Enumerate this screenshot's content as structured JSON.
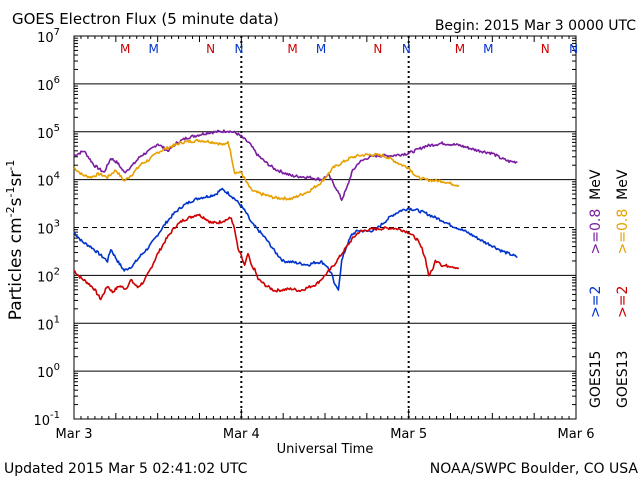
{
  "header": {
    "title": "GOES Electron Flux (5 minute data)",
    "begin": "Begin: 2015 Mar 3 0000 UTC"
  },
  "footer": {
    "updated": "Updated 2015 Mar  5 02:41:02 UTC",
    "credit": "NOAA/SWPC Boulder, CO USA"
  },
  "chart_data": {
    "type": "line",
    "title": "GOES Electron Flux (5 minute data)",
    "xlabel": "Universal Time",
    "ylabel_parts": [
      "Particles cm",
      "-2",
      "s",
      "-1",
      "sr",
      "-1"
    ],
    "x_unit": "days since 2015 Mar 3 0000 UTC",
    "xlim": [
      0,
      3
    ],
    "ylim_log10": [
      -1,
      7
    ],
    "y_ticks": [
      {
        "base": "10",
        "exp": "7"
      },
      {
        "base": "10",
        "exp": "6"
      },
      {
        "base": "10",
        "exp": "5"
      },
      {
        "base": "10",
        "exp": "4"
      },
      {
        "base": "10",
        "exp": "3"
      },
      {
        "base": "10",
        "exp": "2"
      },
      {
        "base": "10",
        "exp": "1"
      },
      {
        "base": "10",
        "exp": "0"
      },
      {
        "base": "10",
        "exp": "-1"
      }
    ],
    "x_ticks": [
      {
        "label": "Mar 3",
        "x": 0
      },
      {
        "label": "Mar 4",
        "x": 1
      },
      {
        "label": "Mar 5",
        "x": 2
      },
      {
        "label": "Mar 6",
        "x": 3
      }
    ],
    "mn_markers": [
      {
        "label": "M",
        "x": 0.33,
        "color": "#cc0000"
      },
      {
        "label": "M",
        "x": 0.5,
        "color": "#0033cc"
      },
      {
        "label": "N",
        "x": 0.84,
        "color": "#cc0000"
      },
      {
        "label": "N",
        "x": 1.01,
        "color": "#0033cc"
      },
      {
        "label": "M",
        "x": 1.33,
        "color": "#cc0000"
      },
      {
        "label": "M",
        "x": 1.5,
        "color": "#0033cc"
      },
      {
        "label": "N",
        "x": 1.84,
        "color": "#cc0000"
      },
      {
        "label": "N",
        "x": 2.01,
        "color": "#0033cc"
      },
      {
        "label": "M",
        "x": 2.33,
        "color": "#cc0000"
      },
      {
        "label": "M",
        "x": 2.5,
        "color": "#0033cc"
      },
      {
        "label": "N",
        "x": 2.84,
        "color": "#cc0000"
      },
      {
        "label": "N",
        "x": 3.01,
        "color": "#0033cc"
      }
    ],
    "legend": {
      "placement": "right",
      "groups": [
        {
          "label": "GOES15",
          "entries": [
            {
              "text": ">=2",
              "color": "#0033cc"
            },
            {
              "text": ">=0.8",
              "color": "#7a1ea0"
            }
          ]
        },
        {
          "label": "GOES13",
          "entries": [
            {
              "text": ">=2",
              "color": "#cc0000"
            },
            {
              "text": ">=0.8",
              "color": "#e6a000"
            }
          ]
        }
      ],
      "unit": "MeV"
    },
    "series": [
      {
        "name": "GOES15 >=0.8 MeV",
        "color": "#7a1ea0",
        "points": [
          [
            0.0,
            4.5
          ],
          [
            0.06,
            4.6
          ],
          [
            0.12,
            4.3
          ],
          [
            0.18,
            4.15
          ],
          [
            0.22,
            4.45
          ],
          [
            0.26,
            4.35
          ],
          [
            0.3,
            4.15
          ],
          [
            0.35,
            4.3
          ],
          [
            0.4,
            4.5
          ],
          [
            0.45,
            4.6
          ],
          [
            0.5,
            4.75
          ],
          [
            0.56,
            4.6
          ],
          [
            0.62,
            4.78
          ],
          [
            0.68,
            4.88
          ],
          [
            0.74,
            4.93
          ],
          [
            0.8,
            4.98
          ],
          [
            0.86,
            5.0
          ],
          [
            0.92,
            5.02
          ],
          [
            0.97,
            4.97
          ],
          [
            1.0,
            4.9
          ],
          [
            1.05,
            4.75
          ],
          [
            1.1,
            4.5
          ],
          [
            1.15,
            4.35
          ],
          [
            1.2,
            4.22
          ],
          [
            1.3,
            4.08
          ],
          [
            1.4,
            4.05
          ],
          [
            1.48,
            4.0
          ],
          [
            1.52,
            4.1
          ],
          [
            1.57,
            3.8
          ],
          [
            1.6,
            3.58
          ],
          [
            1.63,
            3.82
          ],
          [
            1.66,
            4.15
          ],
          [
            1.7,
            4.35
          ],
          [
            1.75,
            4.45
          ],
          [
            1.8,
            4.5
          ],
          [
            1.9,
            4.5
          ],
          [
            2.0,
            4.55
          ],
          [
            2.05,
            4.62
          ],
          [
            2.1,
            4.7
          ],
          [
            2.2,
            4.76
          ],
          [
            2.3,
            4.72
          ],
          [
            2.4,
            4.62
          ],
          [
            2.5,
            4.55
          ],
          [
            2.55,
            4.45
          ],
          [
            2.6,
            4.38
          ],
          [
            2.65,
            4.37
          ]
        ]
      },
      {
        "name": "GOES13 >=0.8 MeV",
        "color": "#e6a000",
        "points": [
          [
            0.0,
            4.25
          ],
          [
            0.05,
            4.1
          ],
          [
            0.1,
            4.05
          ],
          [
            0.15,
            4.12
          ],
          [
            0.2,
            4.05
          ],
          [
            0.25,
            4.2
          ],
          [
            0.3,
            3.97
          ],
          [
            0.35,
            4.12
          ],
          [
            0.4,
            4.32
          ],
          [
            0.45,
            4.42
          ],
          [
            0.5,
            4.57
          ],
          [
            0.55,
            4.65
          ],
          [
            0.6,
            4.72
          ],
          [
            0.65,
            4.78
          ],
          [
            0.7,
            4.8
          ],
          [
            0.75,
            4.82
          ],
          [
            0.8,
            4.8
          ],
          [
            0.85,
            4.77
          ],
          [
            0.9,
            4.72
          ],
          [
            0.92,
            4.8
          ],
          [
            0.94,
            4.5
          ],
          [
            0.96,
            4.15
          ],
          [
            1.0,
            4.15
          ],
          [
            1.03,
            3.95
          ],
          [
            1.06,
            3.78
          ],
          [
            1.1,
            3.72
          ],
          [
            1.2,
            3.62
          ],
          [
            1.3,
            3.6
          ],
          [
            1.4,
            3.75
          ],
          [
            1.48,
            3.95
          ],
          [
            1.55,
            4.25
          ],
          [
            1.6,
            4.35
          ],
          [
            1.65,
            4.45
          ],
          [
            1.7,
            4.5
          ],
          [
            1.75,
            4.52
          ],
          [
            1.8,
            4.52
          ],
          [
            1.85,
            4.5
          ],
          [
            1.9,
            4.42
          ],
          [
            1.95,
            4.32
          ],
          [
            2.0,
            4.25
          ],
          [
            2.05,
            4.05
          ],
          [
            2.1,
            4.0
          ],
          [
            2.15,
            3.98
          ],
          [
            2.2,
            3.97
          ],
          [
            2.25,
            3.92
          ],
          [
            2.3,
            3.88
          ]
        ]
      },
      {
        "name": "GOES15 >=2 MeV",
        "color": "#0033cc",
        "points": [
          [
            0.0,
            2.9
          ],
          [
            0.05,
            2.7
          ],
          [
            0.1,
            2.6
          ],
          [
            0.15,
            2.45
          ],
          [
            0.2,
            2.3
          ],
          [
            0.22,
            2.55
          ],
          [
            0.26,
            2.3
          ],
          [
            0.3,
            2.1
          ],
          [
            0.35,
            2.2
          ],
          [
            0.4,
            2.42
          ],
          [
            0.45,
            2.6
          ],
          [
            0.5,
            2.85
          ],
          [
            0.55,
            3.1
          ],
          [
            0.6,
            3.3
          ],
          [
            0.65,
            3.45
          ],
          [
            0.7,
            3.55
          ],
          [
            0.75,
            3.62
          ],
          [
            0.8,
            3.65
          ],
          [
            0.85,
            3.7
          ],
          [
            0.88,
            3.8
          ],
          [
            0.92,
            3.72
          ],
          [
            0.96,
            3.6
          ],
          [
            1.0,
            3.45
          ],
          [
            1.03,
            3.3
          ],
          [
            1.06,
            3.1
          ],
          [
            1.1,
            2.95
          ],
          [
            1.15,
            2.75
          ],
          [
            1.2,
            2.5
          ],
          [
            1.25,
            2.3
          ],
          [
            1.3,
            2.28
          ],
          [
            1.35,
            2.25
          ],
          [
            1.4,
            2.22
          ],
          [
            1.44,
            2.27
          ],
          [
            1.48,
            2.28
          ],
          [
            1.51,
            2.2
          ],
          [
            1.54,
            2.02
          ],
          [
            1.56,
            1.78
          ],
          [
            1.58,
            1.72
          ],
          [
            1.6,
            2.3
          ],
          [
            1.63,
            2.62
          ],
          [
            1.66,
            2.85
          ],
          [
            1.7,
            2.94
          ],
          [
            1.75,
            2.92
          ],
          [
            1.8,
            2.95
          ],
          [
            1.85,
            3.1
          ],
          [
            1.9,
            3.25
          ],
          [
            1.95,
            3.35
          ],
          [
            2.0,
            3.4
          ],
          [
            2.05,
            3.36
          ],
          [
            2.1,
            3.3
          ],
          [
            2.15,
            3.22
          ],
          [
            2.2,
            3.15
          ],
          [
            2.25,
            3.05
          ],
          [
            2.3,
            2.98
          ],
          [
            2.35,
            2.9
          ],
          [
            2.4,
            2.8
          ],
          [
            2.45,
            2.7
          ],
          [
            2.5,
            2.62
          ],
          [
            2.55,
            2.52
          ],
          [
            2.6,
            2.45
          ],
          [
            2.65,
            2.38
          ]
        ]
      },
      {
        "name": "GOES13 >=2 MeV",
        "color": "#cc0000",
        "points": [
          [
            0.0,
            2.1
          ],
          [
            0.04,
            1.95
          ],
          [
            0.08,
            1.85
          ],
          [
            0.12,
            1.72
          ],
          [
            0.16,
            1.5
          ],
          [
            0.2,
            1.78
          ],
          [
            0.23,
            1.65
          ],
          [
            0.27,
            1.78
          ],
          [
            0.31,
            1.72
          ],
          [
            0.34,
            1.9
          ],
          [
            0.38,
            1.75
          ],
          [
            0.42,
            1.88
          ],
          [
            0.46,
            2.15
          ],
          [
            0.5,
            2.45
          ],
          [
            0.55,
            2.75
          ],
          [
            0.6,
            3.0
          ],
          [
            0.65,
            3.15
          ],
          [
            0.7,
            3.22
          ],
          [
            0.74,
            3.28
          ],
          [
            0.78,
            3.2
          ],
          [
            0.82,
            3.1
          ],
          [
            0.86,
            3.1
          ],
          [
            0.9,
            3.15
          ],
          [
            0.94,
            3.2
          ],
          [
            0.96,
            2.95
          ],
          [
            0.98,
            2.55
          ],
          [
            1.0,
            2.4
          ],
          [
            1.02,
            2.2
          ],
          [
            1.04,
            2.45
          ],
          [
            1.06,
            2.2
          ],
          [
            1.08,
            2.12
          ],
          [
            1.1,
            1.92
          ],
          [
            1.15,
            1.78
          ],
          [
            1.2,
            1.68
          ],
          [
            1.25,
            1.7
          ],
          [
            1.3,
            1.72
          ],
          [
            1.35,
            1.68
          ],
          [
            1.4,
            1.75
          ],
          [
            1.45,
            1.82
          ],
          [
            1.5,
            2.0
          ],
          [
            1.55,
            2.2
          ],
          [
            1.6,
            2.45
          ],
          [
            1.63,
            2.6
          ],
          [
            1.66,
            2.75
          ],
          [
            1.7,
            2.9
          ],
          [
            1.75,
            2.95
          ],
          [
            1.8,
            2.97
          ],
          [
            1.85,
            2.98
          ],
          [
            1.9,
            2.99
          ],
          [
            1.95,
            2.96
          ],
          [
            2.0,
            2.9
          ],
          [
            2.05,
            2.75
          ],
          [
            2.08,
            2.55
          ],
          [
            2.1,
            2.35
          ],
          [
            2.12,
            2.0
          ],
          [
            2.14,
            2.1
          ],
          [
            2.16,
            2.3
          ],
          [
            2.18,
            2.3
          ],
          [
            2.2,
            2.2
          ],
          [
            2.25,
            2.2
          ],
          [
            2.3,
            2.15
          ]
        ]
      }
    ]
  }
}
